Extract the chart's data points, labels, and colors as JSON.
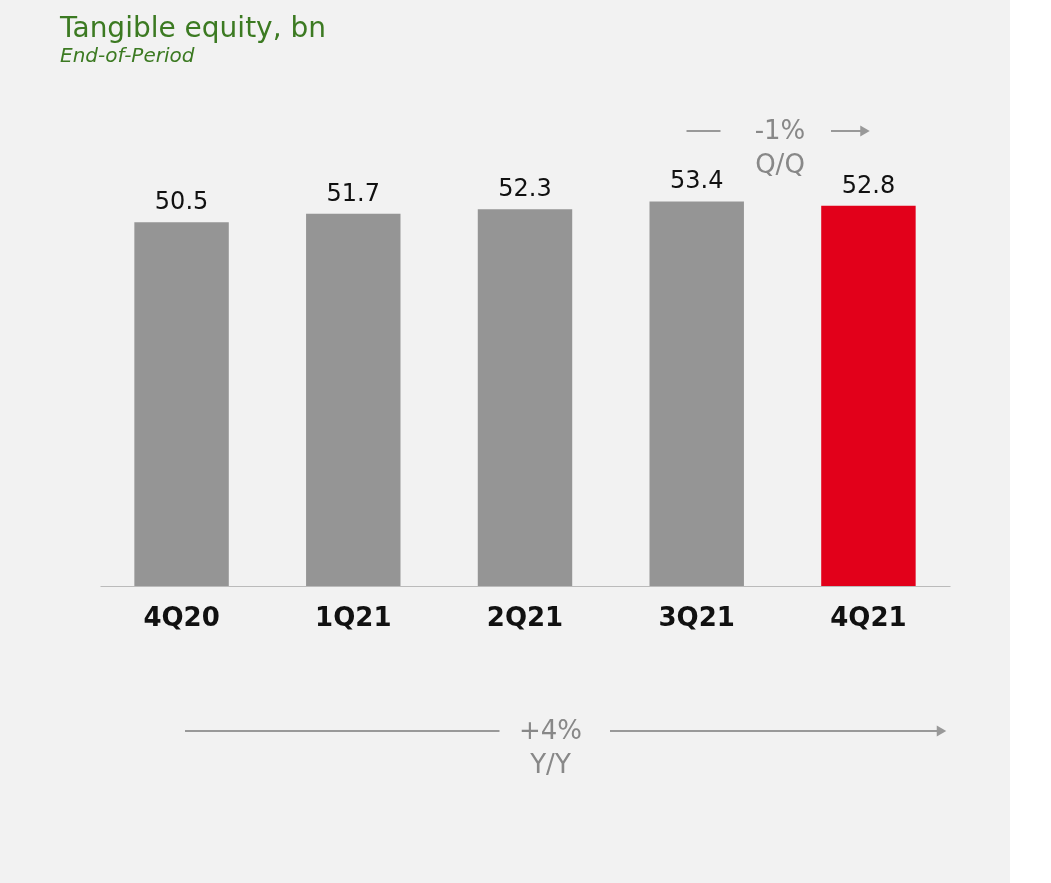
{
  "chart_data": {
    "type": "bar",
    "title": "Tangible equity, bn",
    "subtitle": "End-of-Period",
    "categories": [
      "4Q20",
      "1Q21",
      "2Q21",
      "3Q21",
      "4Q21"
    ],
    "values": [
      50.5,
      51.7,
      52.3,
      53.4,
      52.8
    ],
    "colors": [
      "#959595",
      "#959595",
      "#959595",
      "#959595",
      "#e2001a"
    ],
    "data_labels": true,
    "annotations": [
      "-1%\nQ/Q",
      "+4%\nY/Y"
    ]
  }
}
